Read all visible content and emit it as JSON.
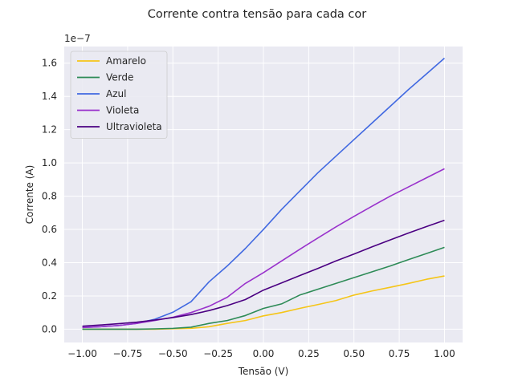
{
  "chart_data": {
    "type": "line",
    "title": "Corrente contra tensão para cada cor",
    "xlabel": "Tensão (V)",
    "ylabel": "Corrente (A)",
    "y_offset_label": "1e−7",
    "y_scale": 1e-07,
    "xlim": [
      -1.1,
      1.1
    ],
    "ylim": [
      -0.08,
      1.7
    ],
    "x_ticks": [
      -1.0,
      -0.75,
      -0.5,
      -0.25,
      0.0,
      0.25,
      0.5,
      0.75,
      1.0
    ],
    "x_tick_labels": [
      "−1.00",
      "−0.75",
      "−0.50",
      "−0.25",
      "0.00",
      "0.25",
      "0.50",
      "0.75",
      "1.00"
    ],
    "y_ticks": [
      0.0,
      0.2,
      0.4,
      0.6,
      0.8,
      1.0,
      1.2,
      1.4,
      1.6
    ],
    "y_tick_labels": [
      "0.0",
      "0.2",
      "0.4",
      "0.6",
      "0.8",
      "1.0",
      "1.2",
      "1.4",
      "1.6"
    ],
    "grid": true,
    "legend_position": "top-left",
    "x": [
      -1.0,
      -0.9,
      -0.8,
      -0.7,
      -0.6,
      -0.5,
      -0.4,
      -0.3,
      -0.2,
      -0.1,
      0.0,
      0.1,
      0.2,
      0.3,
      0.4,
      0.5,
      0.6,
      0.7,
      0.8,
      0.9,
      1.0
    ],
    "series": [
      {
        "name": "Amarelo",
        "color": "#f5c518",
        "values": [
          0.0,
          0.0,
          0.0,
          0.0,
          0.0,
          0.003,
          0.005,
          0.015,
          0.035,
          0.052,
          0.08,
          0.1,
          0.125,
          0.148,
          0.172,
          0.205,
          0.23,
          0.252,
          0.275,
          0.3,
          0.32
        ]
      },
      {
        "name": "Verde",
        "color": "#2e8b57",
        "values": [
          0.0,
          0.0,
          0.0,
          0.0,
          0.002,
          0.005,
          0.012,
          0.035,
          0.052,
          0.082,
          0.125,
          0.152,
          0.205,
          0.24,
          0.275,
          0.31,
          0.345,
          0.38,
          0.418,
          0.455,
          0.492
        ]
      },
      {
        "name": "Azul",
        "color": "#4169e1",
        "values": [
          0.01,
          0.015,
          0.022,
          0.035,
          0.06,
          0.102,
          0.165,
          0.285,
          0.38,
          0.485,
          0.6,
          0.72,
          0.83,
          0.94,
          1.04,
          1.14,
          1.24,
          1.34,
          1.44,
          1.535,
          1.63
        ]
      },
      {
        "name": "Violeta",
        "color": "#9932cc",
        "values": [
          0.01,
          0.015,
          0.022,
          0.035,
          0.052,
          0.072,
          0.1,
          0.138,
          0.192,
          0.275,
          0.34,
          0.41,
          0.48,
          0.548,
          0.615,
          0.678,
          0.74,
          0.8,
          0.855,
          0.91,
          0.965
        ]
      },
      {
        "name": "Ultravioleta",
        "color": "#4b0082",
        "values": [
          0.018,
          0.025,
          0.033,
          0.042,
          0.055,
          0.07,
          0.088,
          0.112,
          0.142,
          0.178,
          0.235,
          0.278,
          0.322,
          0.365,
          0.41,
          0.452,
          0.495,
          0.537,
          0.578,
          0.617,
          0.655
        ]
      }
    ]
  }
}
